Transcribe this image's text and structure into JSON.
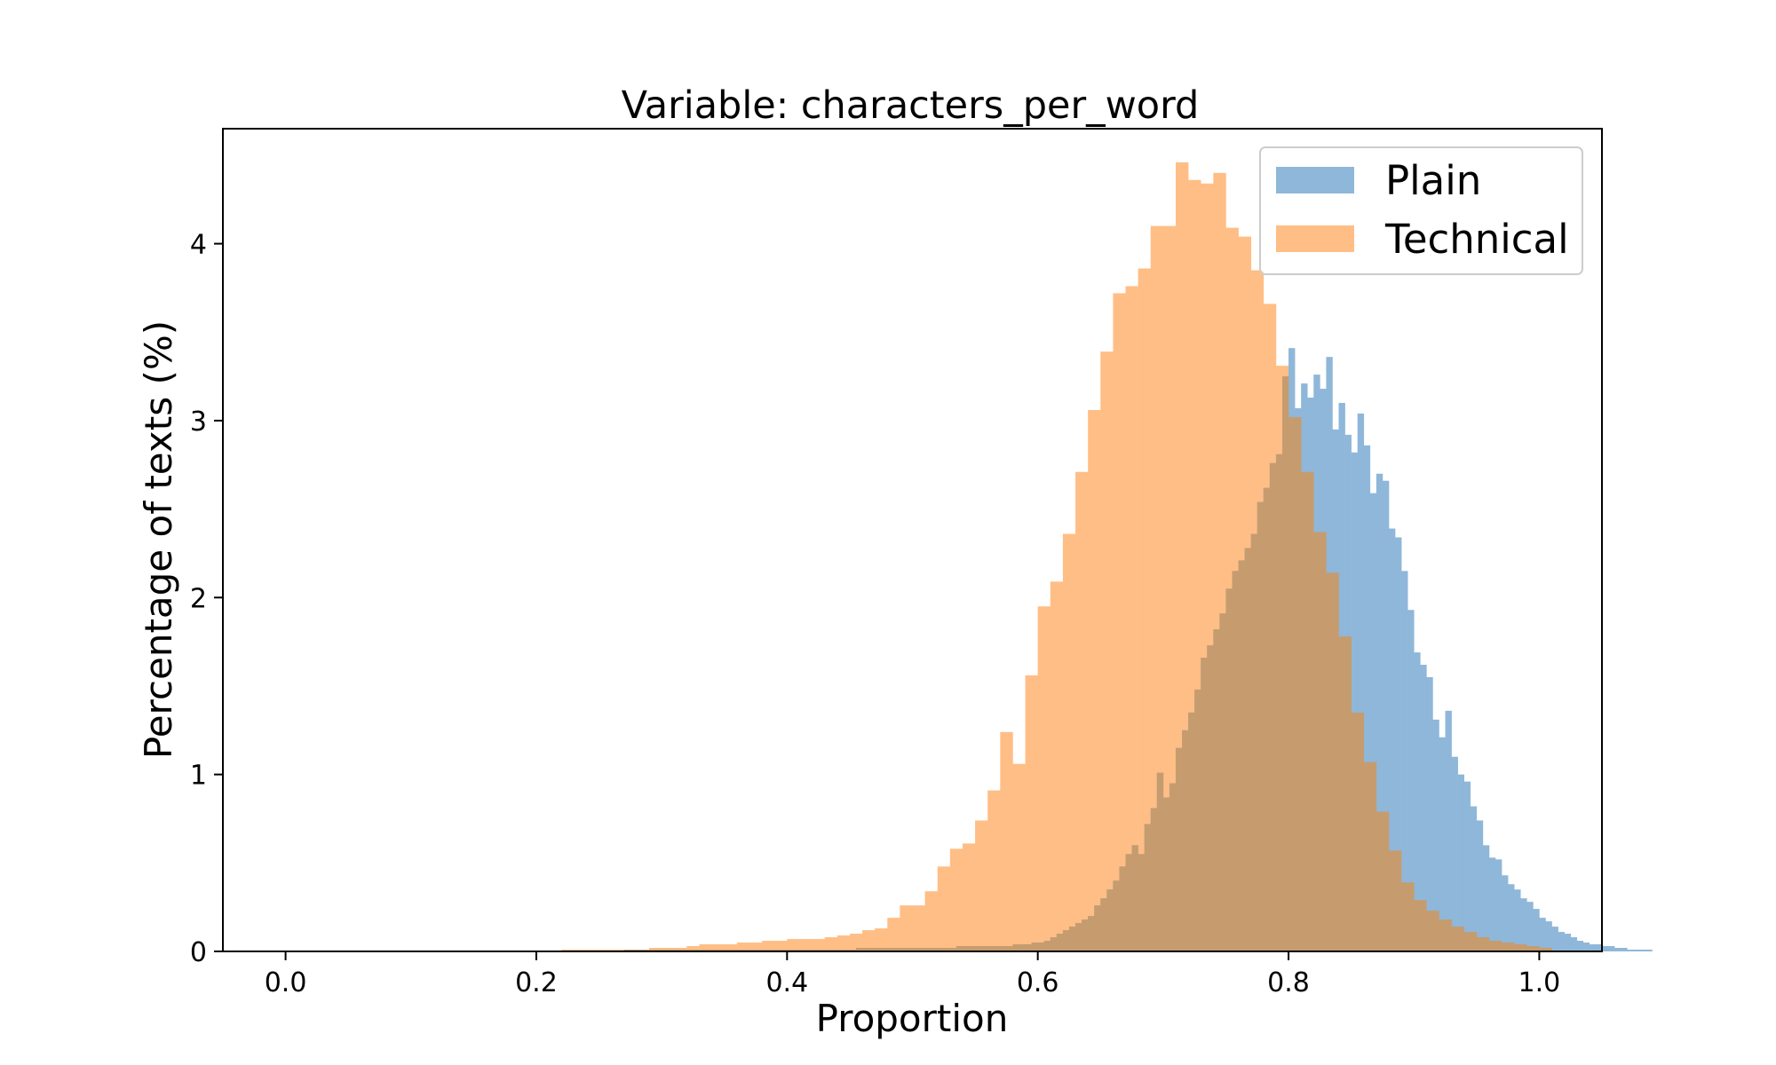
{
  "chart_data": {
    "type": "histogram",
    "title": "Variable: characters_per_word",
    "xlabel": "Proportion",
    "ylabel": "Percentage of texts (%)",
    "xlim": [
      -0.05,
      1.05
    ],
    "ylim": [
      0,
      4.65
    ],
    "x_ticks": [
      "0.0",
      "0.2",
      "0.4",
      "0.6",
      "0.8",
      "1.0"
    ],
    "y_ticks": [
      "0",
      "1",
      "2",
      "3",
      "4"
    ],
    "grid": false,
    "legend_position": "top-right",
    "overlap_color": "#c69c6f",
    "series": [
      {
        "name": "Plain",
        "color": "#8fb7d9",
        "bin_start": 0.27,
        "bin_width": 0.005,
        "values": [
          0.01,
          0.01,
          0.01,
          0.01,
          0.01,
          0.01,
          0.01,
          0.01,
          0.01,
          0.01,
          0.01,
          0.01,
          0.01,
          0.01,
          0.01,
          0.01,
          0.01,
          0.01,
          0.01,
          0.01,
          0.01,
          0.01,
          0.01,
          0.01,
          0.01,
          0.01,
          0.01,
          0.01,
          0.01,
          0.01,
          0.01,
          0.01,
          0.01,
          0.01,
          0.01,
          0.01,
          0.01,
          0.02,
          0.02,
          0.02,
          0.02,
          0.02,
          0.02,
          0.02,
          0.02,
          0.02,
          0.02,
          0.02,
          0.02,
          0.02,
          0.02,
          0.02,
          0.02,
          0.03,
          0.03,
          0.03,
          0.03,
          0.03,
          0.03,
          0.03,
          0.03,
          0.03,
          0.04,
          0.04,
          0.04,
          0.05,
          0.05,
          0.06,
          0.08,
          0.1,
          0.12,
          0.14,
          0.16,
          0.18,
          0.2,
          0.26,
          0.3,
          0.35,
          0.4,
          0.48,
          0.55,
          0.6,
          0.55,
          0.72,
          0.81,
          1.01,
          0.87,
          0.95,
          1.15,
          1.25,
          1.35,
          1.48,
          1.66,
          1.73,
          1.82,
          1.91,
          2.05,
          2.15,
          2.21,
          2.28,
          2.36,
          2.54,
          2.62,
          2.76,
          2.81,
          3.25,
          3.41,
          3.07,
          3.21,
          3.13,
          3.26,
          3.18,
          3.36,
          2.95,
          3.1,
          2.92,
          2.82,
          3.04,
          2.86,
          2.59,
          2.7,
          2.66,
          2.39,
          2.34,
          2.15,
          1.93,
          1.69,
          1.62,
          1.55,
          1.31,
          1.21,
          1.36,
          1.1,
          1.0,
          0.96,
          0.82,
          0.74,
          0.6,
          0.53,
          0.52,
          0.43,
          0.38,
          0.35,
          0.3,
          0.28,
          0.24,
          0.19,
          0.17,
          0.14,
          0.11,
          0.1,
          0.08,
          0.06,
          0.05,
          0.04,
          0.04,
          0.03,
          0.03,
          0.02,
          0.02,
          0.01,
          0.01,
          0.01,
          0.01
        ]
      },
      {
        "name": "Technical",
        "color": "#ffbe86",
        "bin_start": 0.22,
        "bin_width": 0.01,
        "values": [
          0.01,
          0.01,
          0.01,
          0.01,
          0.01,
          0.01,
          0.01,
          0.02,
          0.02,
          0.02,
          0.03,
          0.04,
          0.04,
          0.04,
          0.05,
          0.05,
          0.06,
          0.06,
          0.07,
          0.07,
          0.07,
          0.08,
          0.09,
          0.1,
          0.12,
          0.13,
          0.19,
          0.26,
          0.26,
          0.34,
          0.48,
          0.58,
          0.61,
          0.74,
          0.91,
          1.24,
          1.06,
          1.56,
          1.95,
          2.09,
          2.36,
          2.71,
          3.06,
          3.39,
          3.72,
          3.76,
          3.86,
          4.1,
          4.1,
          4.46,
          4.36,
          4.34,
          4.4,
          4.09,
          4.04,
          3.85,
          3.66,
          3.31,
          3.02,
          2.71,
          2.37,
          2.14,
          1.78,
          1.35,
          1.07,
          0.79,
          0.57,
          0.39,
          0.29,
          0.23,
          0.18,
          0.14,
          0.11,
          0.08,
          0.06,
          0.05,
          0.04,
          0.03,
          0.02
        ]
      }
    ]
  }
}
